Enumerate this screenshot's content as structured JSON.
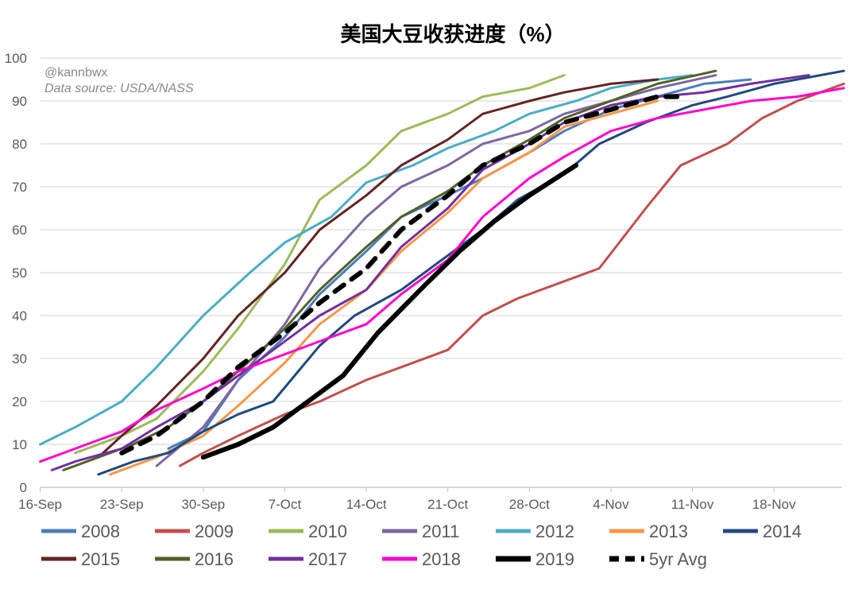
{
  "chart_data": {
    "type": "line",
    "title": "美国大豆收获进度（%）",
    "annotations": [
      "@kannbwx",
      "Data source: USDA/NASS"
    ],
    "xlabel": "",
    "ylabel": "",
    "x_unit": "days since 16-Sep",
    "xlim": [
      0,
      69
    ],
    "ylim": [
      0,
      100
    ],
    "y_ticks": [
      0,
      10,
      20,
      30,
      40,
      50,
      60,
      70,
      80,
      90,
      100
    ],
    "x_ticks": [
      {
        "day": 0,
        "label": "16-Sep"
      },
      {
        "day": 7,
        "label": "23-Sep"
      },
      {
        "day": 14,
        "label": "30-Sep"
      },
      {
        "day": 21,
        "label": "7-Oct"
      },
      {
        "day": 28,
        "label": "14-Oct"
      },
      {
        "day": 35,
        "label": "21-Oct"
      },
      {
        "day": 42,
        "label": "28-Oct"
      },
      {
        "day": 49,
        "label": "4-Nov"
      },
      {
        "day": 56,
        "label": "11-Nov"
      },
      {
        "day": 63,
        "label": "18-Nov"
      }
    ],
    "grid": true,
    "legend_position": "bottom",
    "series": [
      {
        "name": "2008",
        "color": "#4a7ebb",
        "points": [
          [
            11,
            9
          ],
          [
            14,
            13
          ],
          [
            17,
            25
          ],
          [
            21,
            35
          ],
          [
            24,
            45
          ],
          [
            28,
            55
          ],
          [
            31,
            63
          ],
          [
            35,
            68
          ],
          [
            38,
            72
          ],
          [
            42,
            78
          ],
          [
            45,
            83
          ],
          [
            49,
            88
          ],
          [
            53,
            91
          ],
          [
            57,
            94
          ],
          [
            61,
            95
          ]
        ]
      },
      {
        "name": "2009",
        "color": "#c0504d",
        "points": [
          [
            12,
            5
          ],
          [
            14,
            8
          ],
          [
            17,
            12
          ],
          [
            21,
            17
          ],
          [
            24,
            20
          ],
          [
            28,
            25
          ],
          [
            31,
            28
          ],
          [
            35,
            32
          ],
          [
            38,
            40
          ],
          [
            41,
            44
          ],
          [
            45,
            48
          ],
          [
            48,
            51
          ],
          [
            52,
            65
          ],
          [
            55,
            75
          ],
          [
            59,
            80
          ],
          [
            62,
            86
          ],
          [
            65,
            90
          ],
          [
            69,
            94
          ]
        ]
      },
      {
        "name": "2010",
        "color": "#9bbb59",
        "points": [
          [
            3,
            8
          ],
          [
            7,
            12
          ],
          [
            10,
            16
          ],
          [
            14,
            27
          ],
          [
            17,
            37
          ],
          [
            21,
            52
          ],
          [
            24,
            67
          ],
          [
            28,
            75
          ],
          [
            31,
            83
          ],
          [
            35,
            87
          ],
          [
            38,
            91
          ],
          [
            42,
            93
          ],
          [
            45,
            96
          ]
        ]
      },
      {
        "name": "2011",
        "color": "#8064a2",
        "points": [
          [
            10,
            5
          ],
          [
            14,
            14
          ],
          [
            17,
            25
          ],
          [
            21,
            38
          ],
          [
            24,
            51
          ],
          [
            28,
            63
          ],
          [
            31,
            70
          ],
          [
            35,
            75
          ],
          [
            38,
            80
          ],
          [
            42,
            83
          ],
          [
            45,
            87
          ],
          [
            49,
            90
          ],
          [
            53,
            93
          ],
          [
            58,
            96
          ]
        ]
      },
      {
        "name": "2012",
        "color": "#4bacc6",
        "points": [
          [
            0,
            10
          ],
          [
            3,
            14
          ],
          [
            7,
            20
          ],
          [
            10,
            28
          ],
          [
            14,
            40
          ],
          [
            18,
            50
          ],
          [
            21,
            57
          ],
          [
            25,
            63
          ],
          [
            28,
            71
          ],
          [
            32,
            75
          ],
          [
            35,
            79
          ],
          [
            39,
            83
          ],
          [
            42,
            87
          ],
          [
            46,
            90
          ],
          [
            49,
            93
          ],
          [
            53,
            95
          ],
          [
            56,
            96
          ]
        ]
      },
      {
        "name": "2013",
        "color": "#f79646",
        "points": [
          [
            6,
            3
          ],
          [
            10,
            7
          ],
          [
            14,
            12
          ],
          [
            17,
            19
          ],
          [
            21,
            29
          ],
          [
            24,
            38
          ],
          [
            28,
            46
          ],
          [
            31,
            55
          ],
          [
            35,
            64
          ],
          [
            38,
            72
          ],
          [
            42,
            78
          ],
          [
            45,
            84
          ],
          [
            49,
            87
          ],
          [
            53,
            90
          ]
        ]
      },
      {
        "name": "2014",
        "color": "#1f497d",
        "points": [
          [
            5,
            3
          ],
          [
            8,
            6
          ],
          [
            11,
            8
          ],
          [
            14,
            13
          ],
          [
            17,
            17
          ],
          [
            20,
            20
          ],
          [
            24,
            33
          ],
          [
            27,
            40
          ],
          [
            31,
            46
          ],
          [
            34,
            52
          ],
          [
            38,
            60
          ],
          [
            41,
            67
          ],
          [
            45,
            73
          ],
          [
            48,
            80
          ],
          [
            52,
            85
          ],
          [
            56,
            89
          ],
          [
            59,
            91
          ],
          [
            63,
            94
          ],
          [
            69,
            97
          ]
        ]
      },
      {
        "name": "2015",
        "color": "#632523",
        "points": [
          [
            5,
            7
          ],
          [
            7,
            12
          ],
          [
            10,
            19
          ],
          [
            14,
            30
          ],
          [
            17,
            40
          ],
          [
            21,
            50
          ],
          [
            24,
            60
          ],
          [
            28,
            68
          ],
          [
            31,
            75
          ],
          [
            35,
            81
          ],
          [
            38,
            87
          ],
          [
            42,
            90
          ],
          [
            45,
            92
          ],
          [
            49,
            94
          ],
          [
            53,
            95
          ]
        ]
      },
      {
        "name": "2016",
        "color": "#4f6228",
        "points": [
          [
            2,
            4
          ],
          [
            5,
            7
          ],
          [
            8,
            10
          ],
          [
            11,
            14
          ],
          [
            14,
            20
          ],
          [
            17,
            27
          ],
          [
            21,
            37
          ],
          [
            24,
            46
          ],
          [
            28,
            56
          ],
          [
            31,
            63
          ],
          [
            35,
            69
          ],
          [
            38,
            75
          ],
          [
            42,
            81
          ],
          [
            45,
            86
          ],
          [
            49,
            90
          ],
          [
            53,
            94
          ],
          [
            58,
            97
          ]
        ]
      },
      {
        "name": "2017",
        "color": "#7030a0",
        "points": [
          [
            1,
            4
          ],
          [
            3,
            6
          ],
          [
            7,
            9
          ],
          [
            10,
            14
          ],
          [
            14,
            20
          ],
          [
            17,
            26
          ],
          [
            21,
            34
          ],
          [
            24,
            40
          ],
          [
            28,
            46
          ],
          [
            31,
            56
          ],
          [
            35,
            65
          ],
          [
            38,
            74
          ],
          [
            42,
            80
          ],
          [
            45,
            85
          ],
          [
            49,
            89
          ],
          [
            53,
            91
          ],
          [
            57,
            92
          ],
          [
            61,
            94
          ],
          [
            66,
            96
          ]
        ]
      },
      {
        "name": "2018",
        "color": "#ff00cc",
        "points": [
          [
            0,
            6
          ],
          [
            3,
            9
          ],
          [
            7,
            13
          ],
          [
            10,
            18
          ],
          [
            14,
            23
          ],
          [
            17,
            27
          ],
          [
            21,
            31
          ],
          [
            24,
            34
          ],
          [
            28,
            38
          ],
          [
            31,
            45
          ],
          [
            35,
            53
          ],
          [
            38,
            63
          ],
          [
            42,
            72
          ],
          [
            45,
            77
          ],
          [
            49,
            83
          ],
          [
            53,
            86
          ],
          [
            57,
            88
          ],
          [
            61,
            90
          ],
          [
            65,
            91
          ],
          [
            69,
            93
          ]
        ]
      },
      {
        "name": "2019",
        "color": "#000000",
        "width": 6,
        "points": [
          [
            14,
            7
          ],
          [
            17,
            10
          ],
          [
            20,
            14
          ],
          [
            23,
            20
          ],
          [
            26,
            26
          ],
          [
            29,
            36
          ],
          [
            33,
            47
          ],
          [
            36,
            55
          ],
          [
            39,
            62
          ],
          [
            42,
            68
          ],
          [
            46,
            75
          ]
        ]
      },
      {
        "name": "5yr Avg",
        "color": "#000000",
        "width": 6,
        "dashed": true,
        "points": [
          [
            7,
            8
          ],
          [
            10,
            12
          ],
          [
            14,
            20
          ],
          [
            17,
            28
          ],
          [
            21,
            36
          ],
          [
            24,
            43
          ],
          [
            28,
            51
          ],
          [
            31,
            60
          ],
          [
            35,
            68
          ],
          [
            38,
            75
          ],
          [
            42,
            80
          ],
          [
            45,
            85
          ],
          [
            49,
            88
          ],
          [
            53,
            91
          ],
          [
            55,
            91
          ]
        ]
      }
    ]
  }
}
